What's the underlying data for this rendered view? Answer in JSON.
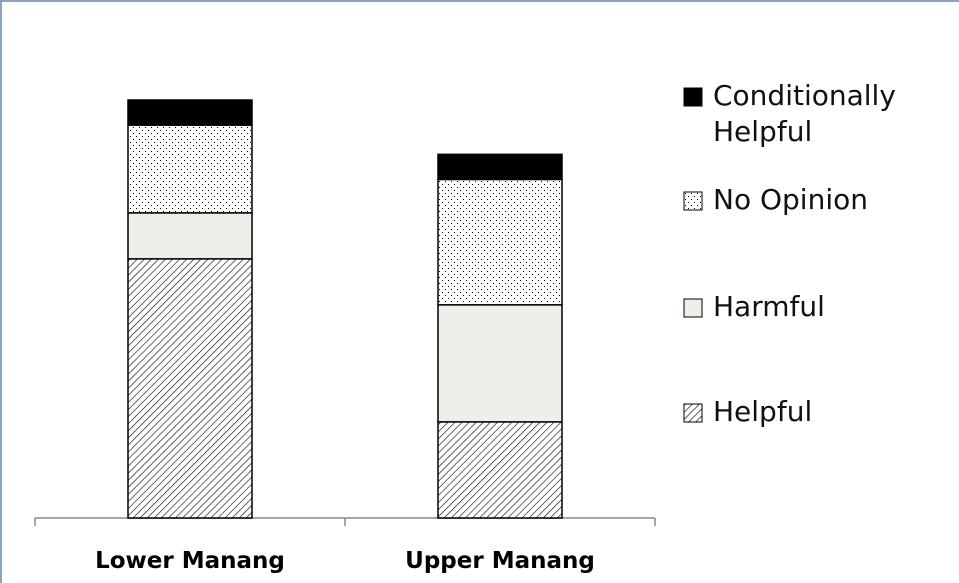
{
  "chart_data": {
    "type": "stacked_bar",
    "categories": [
      "Lower Manang",
      "Upper Manang"
    ],
    "series": [
      {
        "name": "Helpful",
        "color": "#000000",
        "pattern": "hatch",
        "values": [
          62,
          23
        ]
      },
      {
        "name": "Harmful",
        "color": "#efefe9",
        "pattern": "solid",
        "values": [
          11,
          28
        ]
      },
      {
        "name": "No Opinion",
        "color": "#000000",
        "pattern": "dots",
        "values": [
          21,
          30
        ]
      },
      {
        "name": "Conditionally Helpful",
        "color": "#000000",
        "pattern": "solid",
        "values": [
          6,
          6
        ]
      }
    ],
    "legend": "right"
  }
}
